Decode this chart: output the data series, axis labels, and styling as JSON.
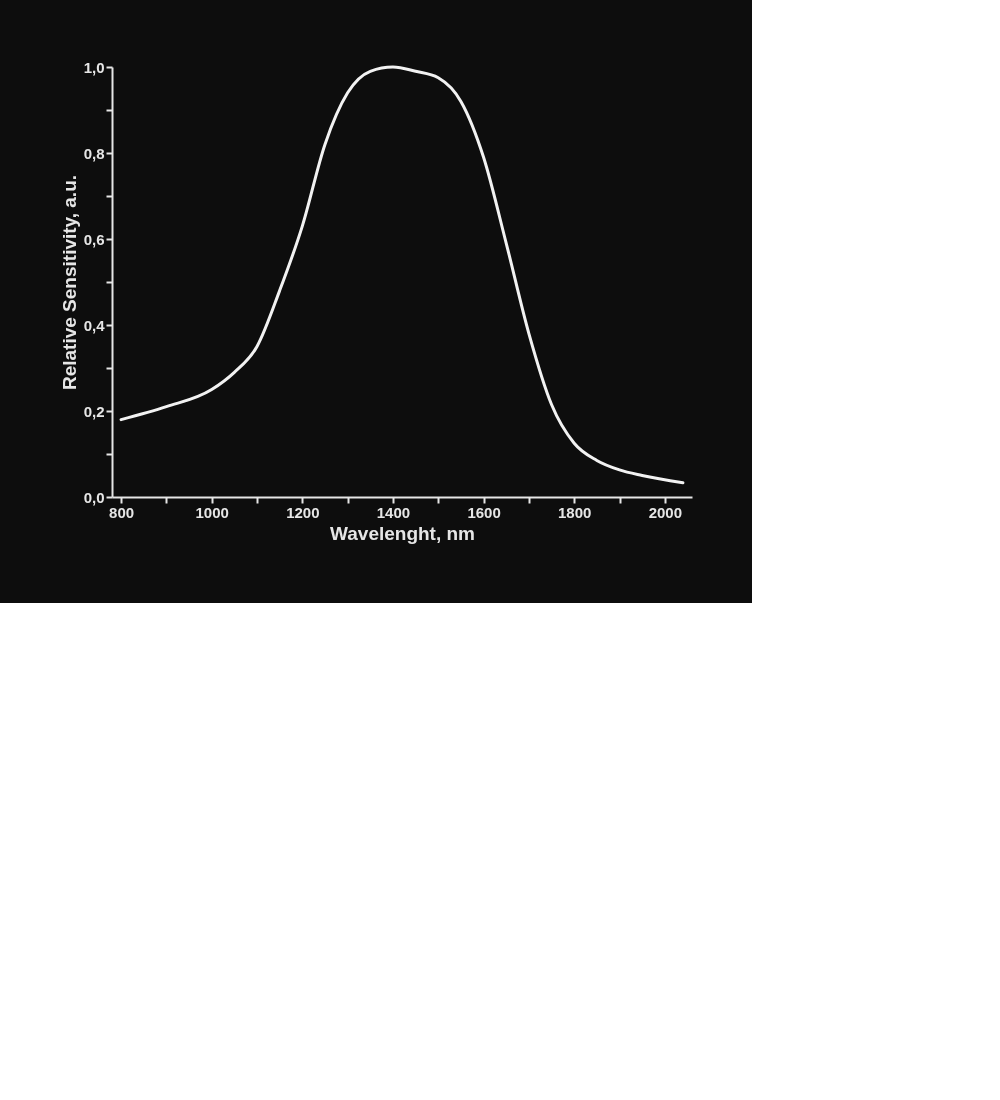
{
  "chart_data": {
    "type": "line",
    "xlabel": "Wavelenght, nm",
    "ylabel": "Relative Sensitivity, a.u.",
    "x": [
      800,
      900,
      1000,
      1050,
      1100,
      1150,
      1200,
      1250,
      1300,
      1350,
      1400,
      1450,
      1500,
      1550,
      1600,
      1650,
      1700,
      1750,
      1800,
      1850,
      1900,
      1950,
      2040
    ],
    "series": [
      {
        "color": "#f2f2f2",
        "values": [
          0.18,
          0.21,
          0.25,
          0.29,
          0.35,
          0.48,
          0.63,
          0.82,
          0.94,
          0.99,
          1.0,
          0.99,
          0.975,
          0.92,
          0.79,
          0.59,
          0.38,
          0.215,
          0.125,
          0.085,
          0.063,
          0.05,
          0.033
        ]
      }
    ],
    "xlim": [
      780,
      2060
    ],
    "ylim": [
      0,
      1.0
    ],
    "xticks": [
      800,
      {
        "value": 900,
        "label": null
      },
      1000,
      {
        "value": 1100,
        "label": null
      },
      1200,
      {
        "value": 1300,
        "label": null
      },
      1400,
      {
        "value": 1500,
        "label": null
      },
      1600,
      {
        "value": 1700,
        "label": null
      },
      1800,
      {
        "value": 1900,
        "label": null
      },
      2000
    ],
    "yticks": [
      {
        "value": 0,
        "label": "0,0"
      },
      {
        "value": 0.1,
        "label": null
      },
      {
        "value": 0.2,
        "label": "0,2"
      },
      {
        "value": 0.3,
        "label": null
      },
      {
        "value": 0.4,
        "label": "0,4"
      },
      {
        "value": 0.5,
        "label": null
      },
      {
        "value": 0.6,
        "label": "0,6"
      },
      {
        "value": 0.7,
        "label": null
      },
      {
        "value": 0.8,
        "label": "0,8"
      },
      {
        "value": 0.9,
        "label": null
      },
      {
        "value": 1.0,
        "label": "1,0"
      }
    ],
    "grid": false,
    "marker": "none",
    "line_style": "solid"
  }
}
